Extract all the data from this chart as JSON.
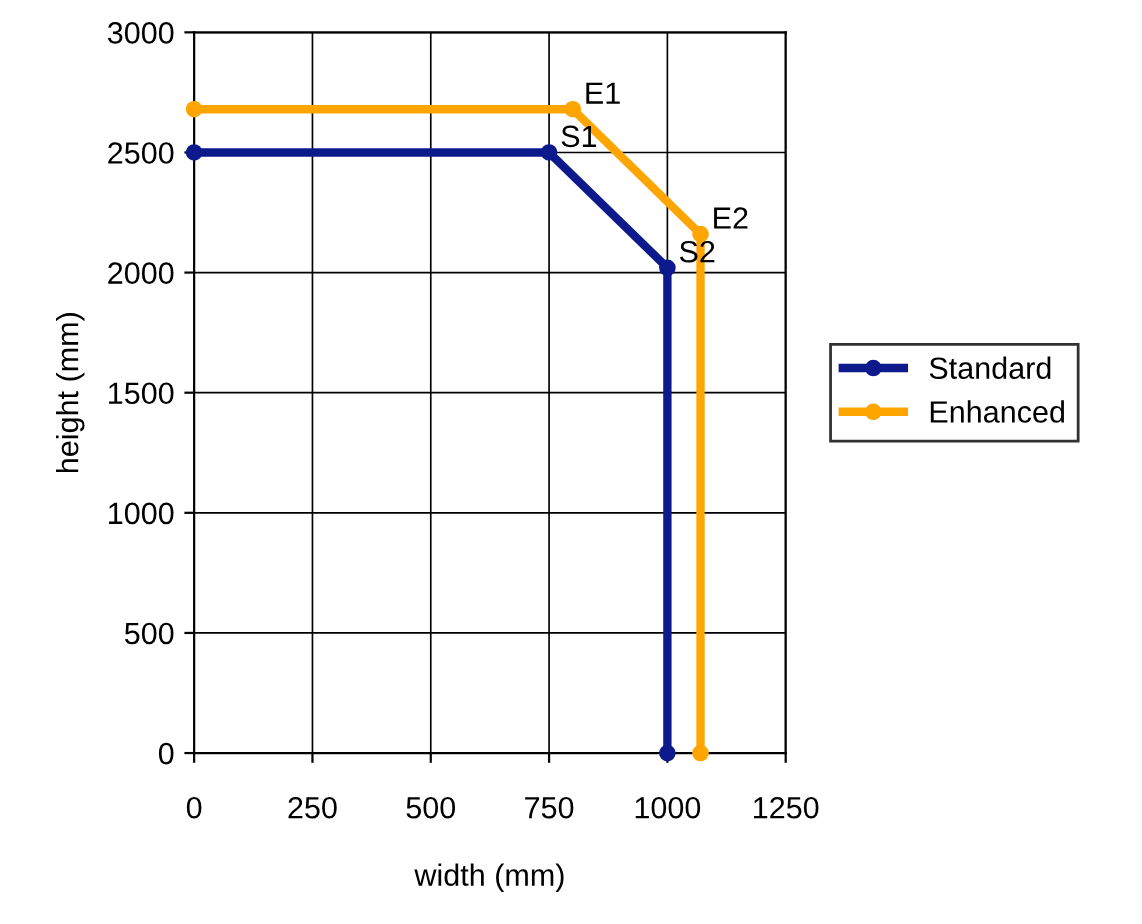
{
  "chart_data": {
    "type": "line",
    "xlabel": "width (mm)",
    "ylabel": "height (mm)",
    "series": [
      {
        "name": "Standard",
        "color": "#0d1a8c",
        "x": [
          0,
          750,
          1000,
          1000
        ],
        "values": [
          2500,
          2500,
          2020,
          0
        ]
      },
      {
        "name": "Enhanced",
        "color": "#ffa500",
        "x": [
          0,
          800,
          1070,
          1070
        ],
        "values": [
          2680,
          2680,
          2160,
          0
        ]
      }
    ],
    "annotations": [
      {
        "text": "S1",
        "x": 750,
        "y": 2500
      },
      {
        "text": "S2",
        "x": 1000,
        "y": 2020
      },
      {
        "text": "E1",
        "x": 800,
        "y": 2680
      },
      {
        "text": "E2",
        "x": 1070,
        "y": 2160
      }
    ],
    "xlim": [
      0,
      1250
    ],
    "xticks": [
      0,
      250,
      500,
      750,
      1000,
      1250
    ],
    "ylim": [
      0,
      3000
    ],
    "yticks": [
      0,
      500,
      1000,
      1500,
      2000,
      2500,
      3000
    ],
    "grid": true,
    "legend": "right",
    "marker": "circle",
    "line_style": "solid"
  }
}
